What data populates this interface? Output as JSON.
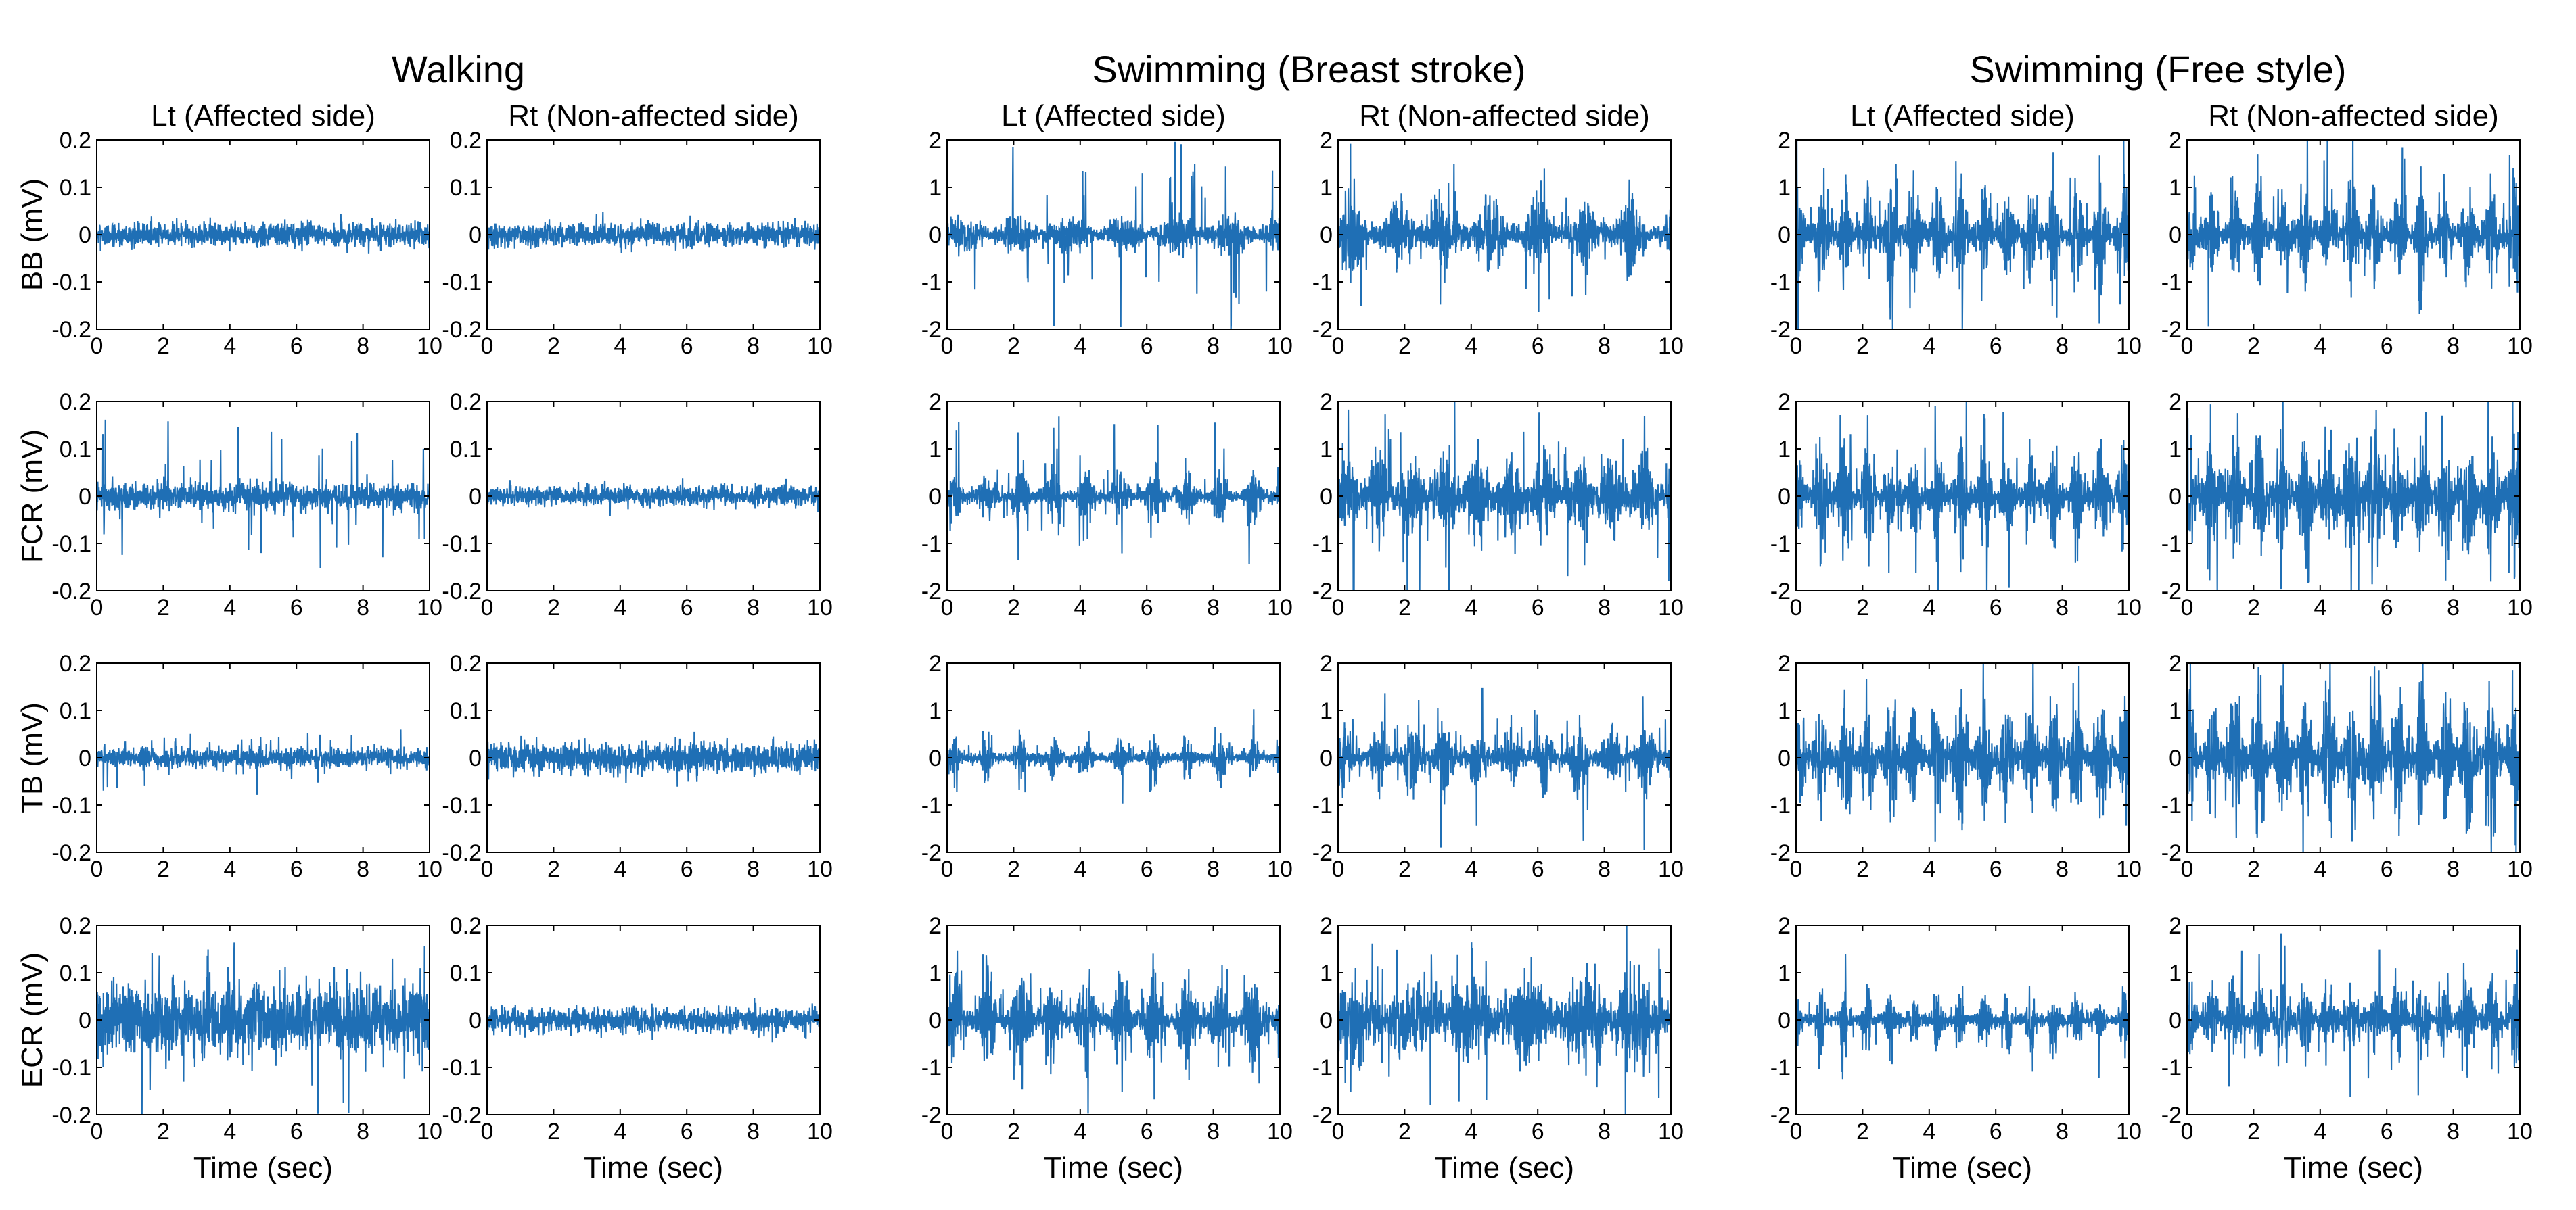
{
  "chart_data": {
    "type": "line",
    "description_kind": "EMG signal panels",
    "series_color": "#1f6fb5",
    "xlabel": "Time (sec)",
    "x_range": [
      0,
      10
    ],
    "x_ticks": [
      0,
      2,
      4,
      6,
      8,
      10
    ],
    "x_tick_labels": [
      "0",
      "2",
      "4",
      "6",
      "8",
      "10"
    ],
    "conditions": [
      {
        "name": "Walking",
        "y_range": [
          -0.2,
          0.2
        ],
        "y_ticks": [
          -0.2,
          -0.1,
          0,
          0.1,
          0.2
        ],
        "y_tick_labels": [
          "-0.2",
          "-0.1",
          "0",
          "0.1",
          "0.2"
        ]
      },
      {
        "name": "Swimming (Breast stroke)",
        "y_range": [
          -2,
          2
        ],
        "y_ticks": [
          -2,
          -1,
          0,
          1,
          2
        ],
        "y_tick_labels": [
          "-2",
          "-1",
          "0",
          "1",
          "2"
        ]
      },
      {
        "name": "Swimming (Free style)",
        "y_range": [
          -2,
          2
        ],
        "y_ticks": [
          -2,
          -1,
          0,
          1,
          2
        ],
        "y_tick_labels": [
          "-2",
          "-1",
          "0",
          "1",
          "2"
        ]
      }
    ],
    "sides": [
      "Lt (Affected side)",
      "Rt (Non-affected side)"
    ],
    "muscles": [
      "BB (mV)",
      "FCR (mV)",
      "TB (mV)",
      "ECR (mV)"
    ],
    "signals": [
      [
        {
          "base": 0.012,
          "spikes": 0.02,
          "period": 0,
          "pulse": 0,
          "seed": 11
        },
        {
          "base": 0.012,
          "spikes": 0.03,
          "period": 0,
          "pulse": 0,
          "seed": 12
        }
      ],
      [
        {
          "base": 0.014,
          "spikes": 0.15,
          "period": 0,
          "pulse": 0,
          "seed": 21
        },
        {
          "base": 0.01,
          "spikes": 0.02,
          "period": 0,
          "pulse": 0,
          "seed": 22
        }
      ],
      [
        {
          "base": 0.01,
          "spikes": 0.06,
          "period": 0,
          "pulse": 0,
          "seed": 31
        },
        {
          "base": 0.015,
          "spikes": 0.03,
          "period": 0,
          "pulse": 0,
          "seed": 32
        }
      ],
      [
        {
          "base": 0.035,
          "spikes": 0.18,
          "period": 0,
          "pulse": 0,
          "seed": 41
        },
        {
          "base": 0.012,
          "spikes": 0.03,
          "period": 0,
          "pulse": 0,
          "seed": 42
        }
      ],
      [
        {
          "base": 0.12,
          "spikes": 2.0,
          "period": 1.6,
          "pulse": 0.8,
          "seed": 51
        },
        {
          "base": 0.25,
          "spikes": 1.6,
          "period": 1.4,
          "pulse": 0.45,
          "seed": 52
        }
      ],
      [
        {
          "base": 0.18,
          "spikes": 1.5,
          "period": 1.0,
          "pulse": 0.25,
          "seed": 61
        },
        {
          "base": 0.25,
          "spikes": 2.0,
          "period": 1.0,
          "pulse": 0.5,
          "seed": 62
        }
      ],
      [
        {
          "base": 0.15,
          "spikes": 0.8,
          "period": 1.0,
          "pulse": 0.15,
          "seed": 71
        },
        {
          "base": 0.22,
          "spikes": 1.8,
          "period": 1.0,
          "pulse": 0.3,
          "seed": 72
        }
      ],
      [
        {
          "base": 0.3,
          "spikes": 1.6,
          "period": 1.0,
          "pulse": 0.3,
          "seed": 81
        },
        {
          "base": 0.28,
          "spikes": 2.0,
          "period": 1.7,
          "pulse": 0.9,
          "seed": 82
        }
      ],
      [
        {
          "base": 0.35,
          "spikes": 2.0,
          "period": 0.7,
          "pulse": 0.2,
          "seed": 91
        },
        {
          "base": 0.35,
          "spikes": 2.0,
          "period": 0.7,
          "pulse": 0.2,
          "seed": 92
        }
      ],
      [
        {
          "base": 0.35,
          "spikes": 2.0,
          "period": 0.7,
          "pulse": 0.2,
          "seed": 101
        },
        {
          "base": 0.4,
          "spikes": 2.0,
          "period": 0.7,
          "pulse": 0.25,
          "seed": 102
        }
      ],
      [
        {
          "base": 0.4,
          "spikes": 1.4,
          "period": 0.7,
          "pulse": 0.2,
          "seed": 111
        },
        {
          "base": 0.5,
          "spikes": 1.5,
          "period": 0.7,
          "pulse": 0.2,
          "seed": 112
        }
      ],
      [
        {
          "base": 0.2,
          "spikes": 1.1,
          "period": 0.7,
          "pulse": 0.15,
          "seed": 121
        },
        {
          "base": 0.25,
          "spikes": 2.0,
          "period": 0.7,
          "pulse": 0.25,
          "seed": 122
        }
      ]
    ]
  }
}
